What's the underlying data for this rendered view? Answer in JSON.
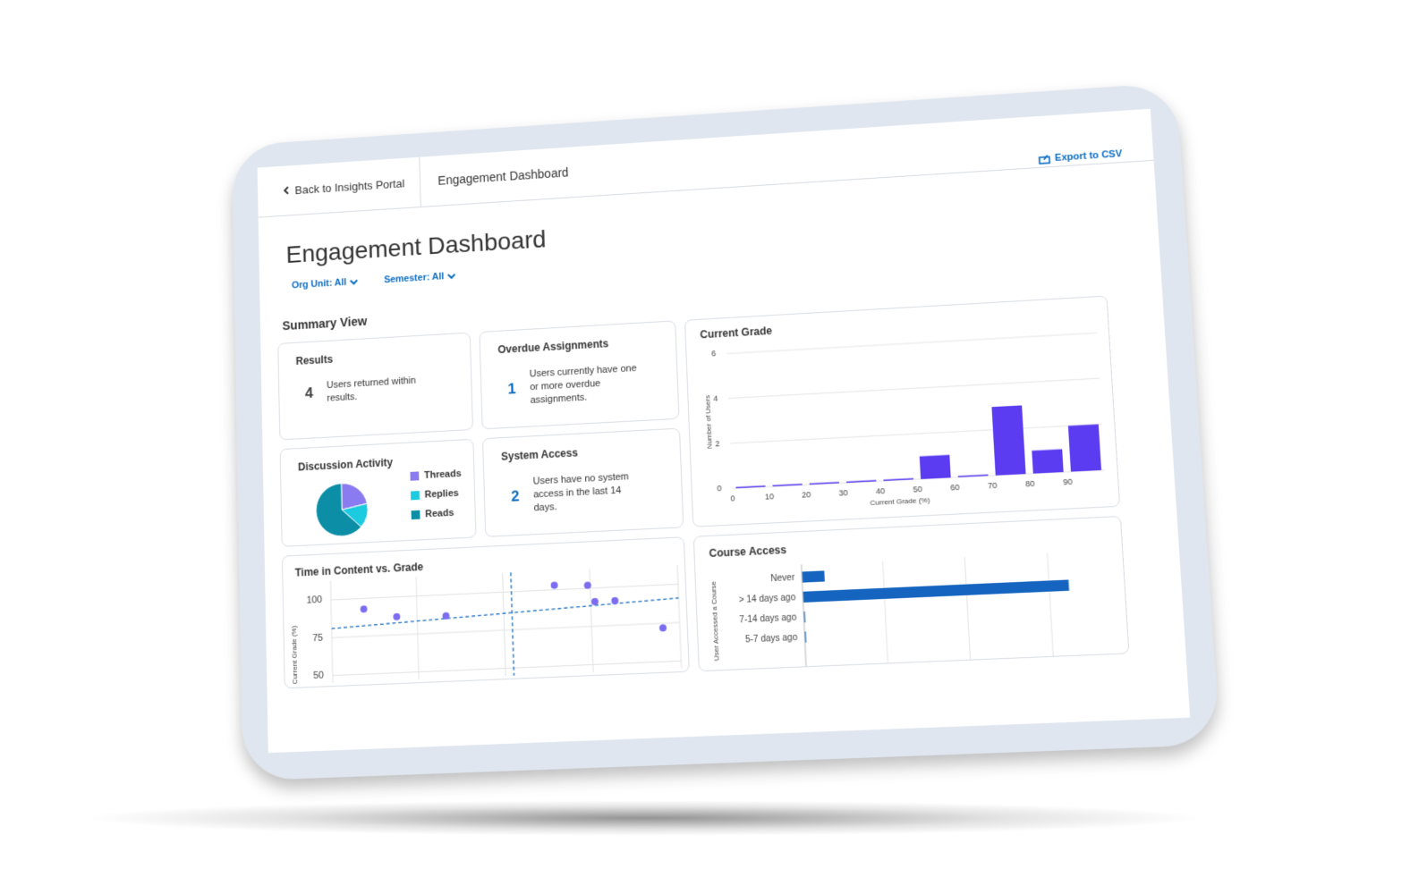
{
  "nav": {
    "back": "Back to Insights Portal",
    "current": "Engagement Dashboard",
    "export": "Export to CSV"
  },
  "title": "Engagement Dashboard",
  "filters": [
    "Org Unit: All",
    "Semester: All"
  ],
  "summary_title": "Summary View",
  "cards": [
    {
      "title": "Results",
      "value": 4,
      "text": "Users returned within results."
    },
    {
      "title": "Overdue Assignments",
      "value": 1,
      "text": "Users currently have one or more overdue assignments."
    },
    {
      "title": "System Access",
      "value": 2,
      "text": "Users have no system access in the last 14 days."
    }
  ],
  "discussion": {
    "type": "pie",
    "title": "Discussion Activity",
    "categories": [
      "Threads",
      "Replies",
      "Reads"
    ],
    "values": [
      22,
      15,
      63
    ],
    "colors": [
      "#8b7bf0",
      "#1ccbe0",
      "#0b8ea6"
    ]
  },
  "current_grade": {
    "type": "histogram",
    "title": "Current Grade",
    "x_label": "Current Grade (%)",
    "y_label": "Number of Users",
    "bins": [
      0,
      10,
      20,
      30,
      40,
      50,
      60,
      70,
      80,
      90,
      100
    ],
    "counts": [
      0,
      0,
      0,
      0,
      0,
      1,
      0,
      3,
      1,
      2
    ],
    "color": "#5b3cf0",
    "xlim": [
      0,
      100
    ],
    "xticks": [
      0,
      10,
      20,
      30,
      40,
      50,
      60,
      70,
      80,
      90
    ],
    "ylim": [
      0,
      6
    ],
    "yticks": [
      0,
      2,
      4,
      6
    ],
    "grid": true
  },
  "time_vs_grade": {
    "type": "scatter",
    "title": "Time in Content vs. Grade",
    "y_label": "Current Grade (%)",
    "x": [
      1,
      2,
      3.5,
      6.8,
      7.8,
      8,
      8.6,
      10
    ],
    "y": [
      93,
      87,
      86,
      103,
      102,
      91,
      91,
      72
    ],
    "color": "#7b6cf0",
    "xlim": [
      0,
      10.5
    ],
    "ylim": [
      45,
      108
    ],
    "yticks": [
      50,
      75,
      100
    ],
    "x_mean": 5.5,
    "trend_y": [
      81,
      91
    ],
    "trend_color": "#1a6fc4",
    "grid": true
  },
  "course_access": {
    "type": "hbar",
    "title": "Course Access",
    "y_label": "User Accessed a Course",
    "categories": [
      "Never",
      "> 14 days ago",
      "7-14 days ago",
      "5-7 days ago"
    ],
    "values": [
      0.3,
      3.5,
      0,
      0
    ],
    "color": "#1565c0",
    "xlim": [
      0,
      4
    ]
  }
}
